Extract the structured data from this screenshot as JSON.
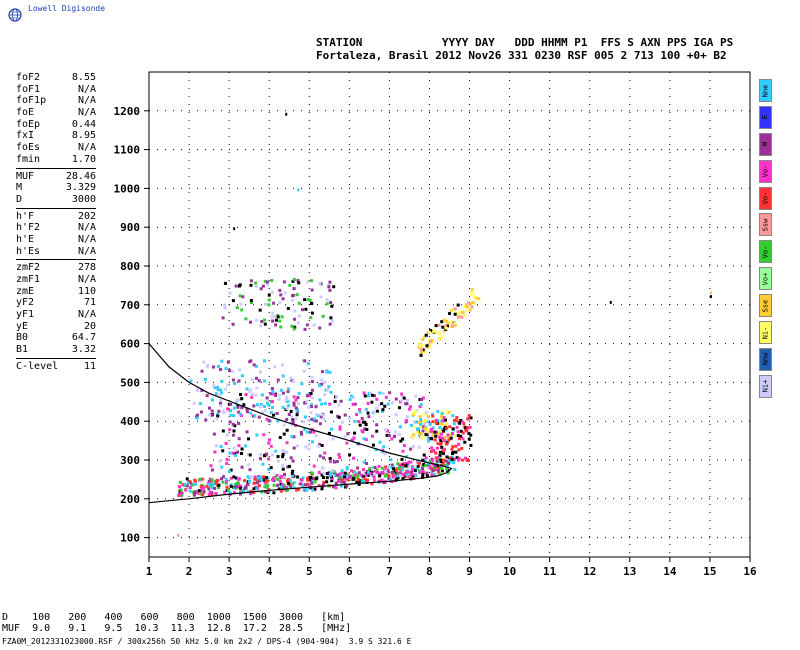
{
  "logo": {
    "text": "Lowell Digisonde"
  },
  "header": {
    "line1": "STATION            YYYY DAY   DDD HHMM P1  FFS S AXN PPS IGA PS",
    "line2": "Fortaleza, Brasil 2012 Nov26 331 0230 RSF 005 2 713 100 +0+ B2"
  },
  "parameters": [
    {
      "name": "foF2",
      "value": "8.55"
    },
    {
      "name": "foF1",
      "value": "N/A"
    },
    {
      "name": "foF1p",
      "value": "N/A"
    },
    {
      "name": "foE",
      "value": "N/A"
    },
    {
      "name": "foEp",
      "value": "0.44"
    },
    {
      "name": "fxI",
      "value": "8.95"
    },
    {
      "name": "foEs",
      "value": "N/A"
    },
    {
      "name": "fmin",
      "value": "1.70"
    },
    {
      "separator": true
    },
    {
      "name": "MUF",
      "value": "28.46"
    },
    {
      "name": "M",
      "value": "3.329"
    },
    {
      "name": "D",
      "value": "3000"
    },
    {
      "separator": true
    },
    {
      "name": "h'F",
      "value": "202"
    },
    {
      "name": "h'F2",
      "value": "N/A"
    },
    {
      "name": "h'E",
      "value": "N/A"
    },
    {
      "name": "h'Es",
      "value": "N/A"
    },
    {
      "separator": true
    },
    {
      "name": "zmF2",
      "value": "278"
    },
    {
      "name": "zmF1",
      "value": "N/A"
    },
    {
      "name": "zmE",
      "value": "110"
    },
    {
      "name": "yF2",
      "value": "71"
    },
    {
      "name": "yF1",
      "value": "N/A"
    },
    {
      "name": "yE",
      "value": "20"
    },
    {
      "name": "B0",
      "value": "64.7"
    },
    {
      "name": "B1",
      "value": "3.32"
    },
    {
      "separator": true
    },
    {
      "name": "C-level",
      "value": "11"
    }
  ],
  "legend": [
    {
      "label": "Nne",
      "color": "#33ccff"
    },
    {
      "label": "E",
      "color": "#3333ff"
    },
    {
      "label": "W",
      "color": "#993399"
    },
    {
      "label": "Vo-",
      "color": "#ff33cc"
    },
    {
      "label": "Vo-",
      "color": "#ff3333"
    },
    {
      "label": "Ssw",
      "color": "#ff9999"
    },
    {
      "label": "Vo-",
      "color": "#33cc33"
    },
    {
      "label": "Vo+",
      "color": "#99ff99"
    },
    {
      "label": "Sse",
      "color": "#ffcc33"
    },
    {
      "label": "Ni-",
      "color": "#ffff66"
    },
    {
      "label": "Nnw",
      "color": "#1f5fb0"
    },
    {
      "label": "Ni+",
      "color": "#ccccff"
    }
  ],
  "distance_table": {
    "line1": "D    100   200   400   600   800  1000  1500  3000   [km]",
    "line2": "MUF  9.0   9.1   9.5  10.3  11.3  12.8  17.2  28.5   [MHz]"
  },
  "footer": "FZA0M_2012331023000.RSF / 300x256h 50 kHz 5.0 km 2x2 / DPS-4 (904-904)  3.9 S 321.6 E",
  "chart_data": {
    "type": "scatter",
    "title": "",
    "xlabel": "",
    "ylabel": "",
    "xlim": [
      1,
      16
    ],
    "ylim": [
      50,
      1300
    ],
    "x_ticks": [
      1,
      2,
      3,
      4,
      5,
      6,
      7,
      8,
      9,
      10,
      11,
      12,
      13,
      14,
      15,
      16
    ],
    "y_ticks": [
      100,
      200,
      300,
      400,
      500,
      600,
      700,
      800,
      900,
      1000,
      1100,
      1200
    ],
    "grid": true,
    "clusters": [
      {
        "region": "F-trace lower",
        "x": [
          1.7,
          8.6
        ],
        "y": [
          205,
          320
        ],
        "colors": [
          "#ff3333",
          "#ff33cc",
          "#33cc33",
          "#000000",
          "#33ccff",
          "#993399"
        ]
      },
      {
        "region": "F-trace diffuse",
        "x": [
          2.5,
          8.0
        ],
        "y": [
          260,
          480
        ],
        "colors": [
          "#ccccff",
          "#993399",
          "#ff33cc",
          "#33ccff",
          "#000000"
        ]
      },
      {
        "region": "second hop",
        "x": [
          2.8,
          5.6
        ],
        "y": [
          640,
          770
        ],
        "colors": [
          "#33cc33",
          "#ccccff",
          "#993399",
          "#000000"
        ]
      },
      {
        "region": "oblique spread",
        "x": [
          7.7,
          9.2
        ],
        "y": [
          560,
          770
        ],
        "colors": [
          "#ffcc33",
          "#ff9999",
          "#000000",
          "#ffff66"
        ]
      },
      {
        "region": "upper spread",
        "x": [
          2.0,
          5.5
        ],
        "y": [
          400,
          560
        ],
        "colors": [
          "#993399",
          "#ccccff",
          "#33ccff"
        ]
      },
      {
        "region": "yellow blob",
        "x": [
          7.5,
          8.6
        ],
        "y": [
          360,
          430
        ],
        "colors": [
          "#ffff66",
          "#ffcc33",
          "#33ccff"
        ]
      },
      {
        "region": "red tip",
        "x": [
          8.0,
          9.0
        ],
        "y": [
          300,
          420
        ],
        "colors": [
          "#ff3333",
          "#ff33cc",
          "#000000"
        ]
      }
    ],
    "isolated_points": [
      {
        "x": 1.7,
        "y": 110,
        "color": "#ff9999"
      },
      {
        "x": 4.4,
        "y": 1195,
        "color": "#000000"
      },
      {
        "x": 4.7,
        "y": 1000,
        "color": "#33ccff"
      },
      {
        "x": 3.1,
        "y": 900,
        "color": "#000000"
      },
      {
        "x": 12.5,
        "y": 710,
        "color": "#000000"
      },
      {
        "x": 15.0,
        "y": 735,
        "color": "#ffcc33"
      },
      {
        "x": 15.0,
        "y": 725,
        "color": "#000000"
      }
    ],
    "profile_curve": [
      [
        1.0,
        600
      ],
      [
        1.5,
        540
      ],
      [
        2.0,
        500
      ],
      [
        2.5,
        472
      ],
      [
        3.0,
        452
      ],
      [
        3.5,
        432
      ],
      [
        4.0,
        412
      ],
      [
        4.5,
        395
      ],
      [
        5.0,
        380
      ],
      [
        5.5,
        365
      ],
      [
        6.0,
        350
      ],
      [
        6.5,
        334
      ],
      [
        7.0,
        318
      ],
      [
        7.5,
        305
      ],
      [
        8.0,
        292
      ],
      [
        8.3,
        286
      ],
      [
        8.55,
        278
      ],
      [
        8.45,
        268
      ],
      [
        8.2,
        259
      ],
      [
        7.8,
        253
      ],
      [
        7.0,
        245
      ],
      [
        6.0,
        238
      ],
      [
        5.0,
        230
      ],
      [
        4.0,
        222
      ],
      [
        3.0,
        212
      ],
      [
        2.0,
        200
      ],
      [
        1.5,
        195
      ],
      [
        1.0,
        190
      ]
    ]
  }
}
